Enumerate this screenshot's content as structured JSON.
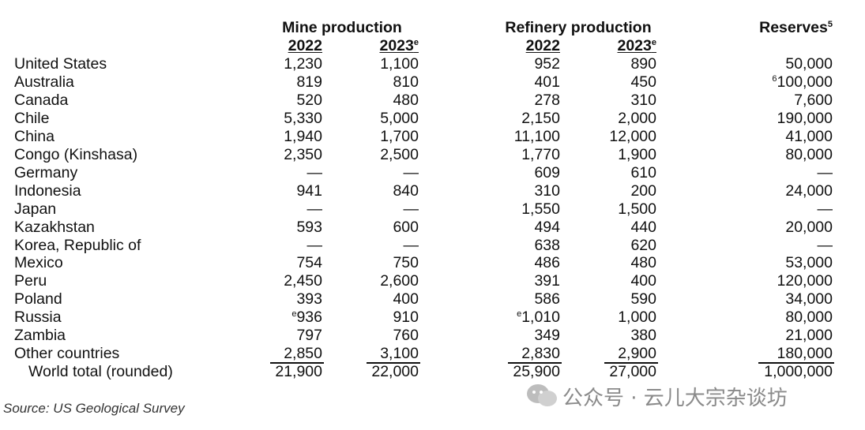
{
  "header": {
    "groups": [
      "Mine production",
      "Refinery production",
      {
        "text": "Reserves",
        "sup": "5"
      }
    ],
    "years": [
      "2022",
      {
        "text": "2023",
        "sup": "e"
      },
      "2022",
      {
        "text": "2023",
        "sup": "e"
      }
    ]
  },
  "table": {
    "rows": [
      [
        "United States",
        "1,230",
        "1,100",
        "952",
        "890",
        "50,000"
      ],
      [
        "Australia",
        "819",
        "810",
        "401",
        "450",
        {
          "sup": "6",
          "text": "100,000"
        }
      ],
      [
        "Canada",
        "520",
        "480",
        "278",
        "310",
        "7,600"
      ],
      [
        "Chile",
        "5,330",
        "5,000",
        "2,150",
        "2,000",
        "190,000"
      ],
      [
        "China",
        "1,940",
        "1,700",
        "11,100",
        "12,000",
        "41,000"
      ],
      [
        "Congo (Kinshasa)",
        "2,350",
        "2,500",
        "1,770",
        "1,900",
        "80,000"
      ],
      [
        "Germany",
        "—",
        "—",
        "609",
        "610",
        "—"
      ],
      [
        "Indonesia",
        "941",
        "840",
        "310",
        "200",
        "24,000"
      ],
      [
        "Japan",
        "—",
        "—",
        "1,550",
        "1,500",
        "—"
      ],
      [
        "Kazakhstan",
        "593",
        "600",
        "494",
        "440",
        "20,000"
      ],
      [
        "Korea, Republic of",
        "—",
        "—",
        "638",
        "620",
        "—"
      ],
      [
        "Mexico",
        "754",
        "750",
        "486",
        "480",
        "53,000"
      ],
      [
        "Peru",
        "2,450",
        "2,600",
        "391",
        "400",
        "120,000"
      ],
      [
        "Poland",
        "393",
        "400",
        "586",
        "590",
        "34,000"
      ],
      [
        "Russia",
        {
          "sup": "e",
          "text": "936"
        },
        "910",
        {
          "sup": "e",
          "text": "1,010"
        },
        "1,000",
        "80,000"
      ],
      [
        "Zambia",
        "797",
        "760",
        "349",
        "380",
        "21,000"
      ],
      [
        "Other countries",
        "2,850",
        "3,100",
        "2,830",
        "2,900",
        "180,000"
      ],
      [
        "World total (rounded)",
        "21,900",
        "22,000",
        "25,900",
        "27,000",
        "1,000,000"
      ]
    ]
  },
  "source": "Source: US Geological Survey",
  "watermark": "公众号 · 云儿大宗杂谈坊"
}
